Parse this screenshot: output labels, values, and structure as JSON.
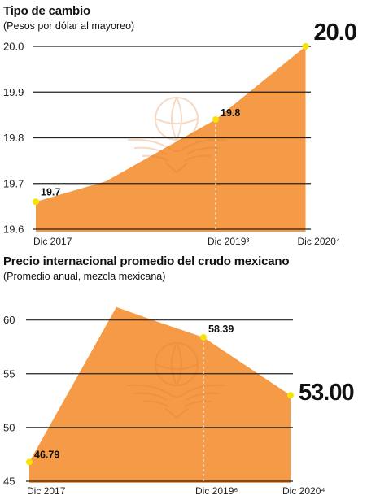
{
  "colors": {
    "area": "#F59A46",
    "point": "#F5E400",
    "grid": "#222222",
    "watermark": "#e07a2e"
  },
  "chart_data": [
    {
      "type": "area",
      "title": "Tipo de cambio",
      "subtitle": "(Pesos por dólar al mayoreo)",
      "yticks": [
        "19.6",
        "19.7",
        "19.8",
        "19.9",
        "20.0"
      ],
      "ylim": [
        19.6,
        20.0
      ],
      "grid": true,
      "x_labels": [
        {
          "index": 0,
          "text": "Dic 2017"
        },
        {
          "index": 2,
          "text": "Dic 2019³"
        },
        {
          "index": 3,
          "text": "Dic 2020⁴"
        }
      ],
      "points": [
        {
          "x": 0,
          "y": 19.66,
          "label": "19.7",
          "big": false
        },
        {
          "x": 0.78,
          "y": 19.705,
          "label": "",
          "big": false,
          "hidden": true
        },
        {
          "x": 2,
          "y": 19.84,
          "label": "19.8",
          "big": false
        },
        {
          "x": 3,
          "y": 20.0,
          "label": "20.0",
          "big": true
        }
      ]
    },
    {
      "type": "area",
      "title": "Precio internacional promedio del crudo mexicano",
      "subtitle": "(Promedio anual, mezcla mexicana)",
      "yticks": [
        "45",
        "50",
        "55",
        "60"
      ],
      "ylim": [
        45,
        63
      ],
      "grid": true,
      "x_labels": [
        {
          "index": 0,
          "text": "Dic 2017"
        },
        {
          "index": 2,
          "text": "Dic 2019⁶"
        },
        {
          "index": 3,
          "text": "Dic 2020⁴"
        }
      ],
      "points": [
        {
          "x": 0,
          "y": 46.79,
          "label": "46.79",
          "big": false
        },
        {
          "x": 1,
          "y": 61.2,
          "label": "",
          "big": false,
          "hidden": true
        },
        {
          "x": 1.45,
          "y": 59.9,
          "label": "",
          "big": false,
          "hidden": true
        },
        {
          "x": 2,
          "y": 58.39,
          "label": "58.39",
          "big": false
        },
        {
          "x": 3,
          "y": 53.0,
          "label": "53.00",
          "big": true
        }
      ]
    }
  ]
}
